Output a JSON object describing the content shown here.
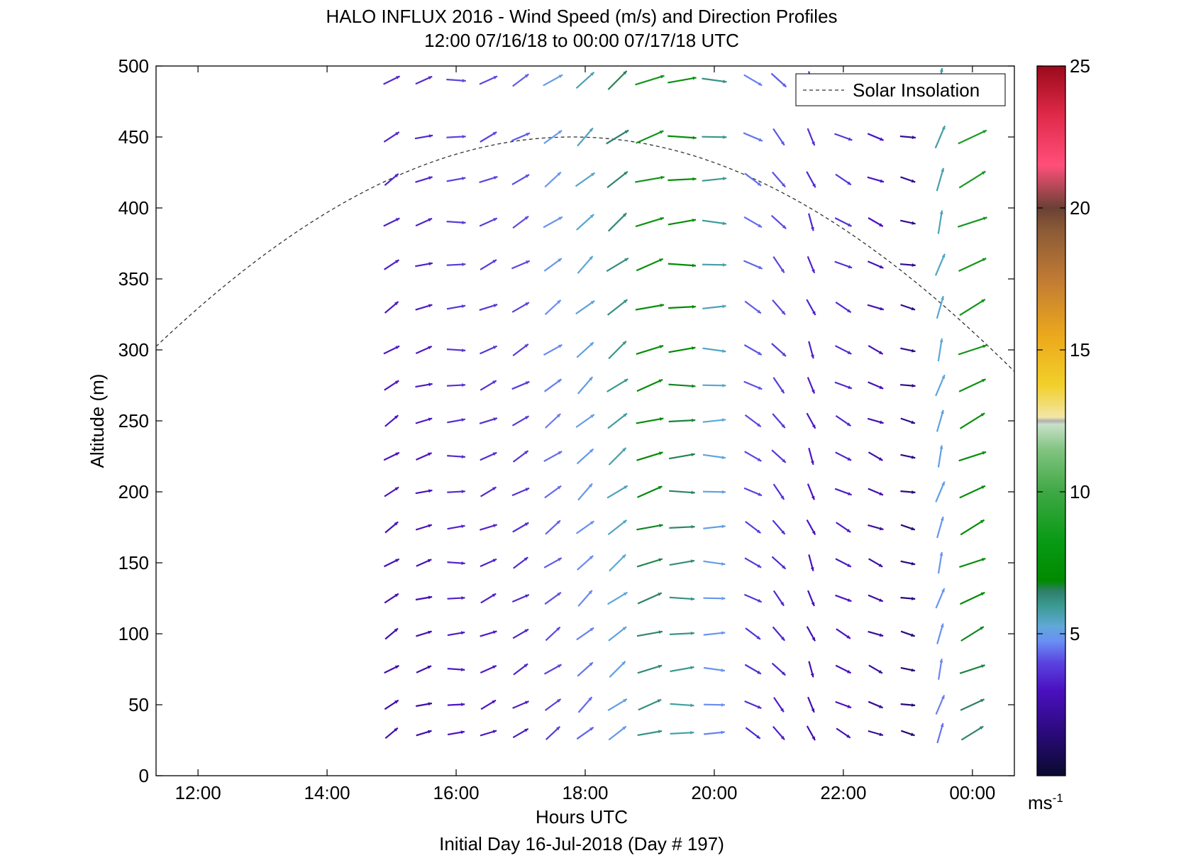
{
  "chart_data": {
    "type": "quiver",
    "title": "HALO INFLUX 2016 - Wind Speed (m/s) and Direction Profiles",
    "subtitle": "12:00 07/16/18 to 00:00 07/17/18  UTC",
    "xlabel": "Hours UTC",
    "ylabel": "Altitude (m)",
    "footer": "Initial Day 16-Jul-2018 (Day # 197)",
    "x_ticks": [
      "12:00",
      "14:00",
      "16:00",
      "18:00",
      "20:00",
      "22:00",
      "00:00"
    ],
    "x_tick_hours": [
      12,
      14,
      16,
      18,
      20,
      22,
      24
    ],
    "xlim": [
      11.35,
      24.65
    ],
    "y_ticks": [
      "0",
      "50",
      "100",
      "150",
      "200",
      "250",
      "300",
      "350",
      "400",
      "450",
      "500"
    ],
    "ylim": [
      0,
      500
    ],
    "legend": {
      "label": "Solar Insolation",
      "position": "top-right"
    },
    "colorbar": {
      "ticks": [
        "5",
        "10",
        "15",
        "20",
        "25"
      ],
      "range": [
        0,
        25
      ],
      "unit": "ms",
      "unit_exp": "-1"
    },
    "solar_insolation": {
      "peak_hour": 17.8,
      "peak_altitude": 450,
      "hours": [
        11.35,
        24.65
      ]
    },
    "altitudes": [
      30,
      50,
      75,
      100,
      125,
      150,
      175,
      200,
      225,
      250,
      275,
      300,
      330,
      360,
      390,
      420,
      450,
      490
    ],
    "wind_profile": [
      {
        "hour": 15.0,
        "speed": 2.5,
        "dir": 240
      },
      {
        "hour": 15.5,
        "speed": 2.5,
        "dir": 250
      },
      {
        "hour": 16.0,
        "speed": 3.0,
        "dir": 265
      },
      {
        "hour": 16.5,
        "speed": 3.0,
        "dir": 245
      },
      {
        "hour": 17.0,
        "speed": 3.2,
        "dir": 240
      },
      {
        "hour": 17.5,
        "speed": 4.0,
        "dir": 235
      },
      {
        "hour": 18.0,
        "speed": 4.6,
        "dir": 230
      },
      {
        "hour": 18.5,
        "speed": 5.5,
        "dir": 235
      },
      {
        "hour": 19.0,
        "speed": 7.0,
        "dir": 250
      },
      {
        "hour": 19.5,
        "speed": 6.5,
        "dir": 265
      },
      {
        "hour": 20.0,
        "speed": 5.0,
        "dir": 270
      },
      {
        "hour": 20.6,
        "speed": 3.5,
        "dir": 300
      },
      {
        "hour": 21.0,
        "speed": 3.2,
        "dir": 320
      },
      {
        "hour": 21.5,
        "speed": 2.6,
        "dir": 340
      },
      {
        "hour": 22.0,
        "speed": 2.8,
        "dir": 300
      },
      {
        "hour": 22.5,
        "speed": 2.2,
        "dir": 290
      },
      {
        "hour": 23.0,
        "speed": 1.6,
        "dir": 280
      },
      {
        "hour": 23.5,
        "speed": 4.8,
        "dir": 195
      },
      {
        "hour": 24.0,
        "speed": 7.5,
        "dir": 245
      }
    ]
  }
}
